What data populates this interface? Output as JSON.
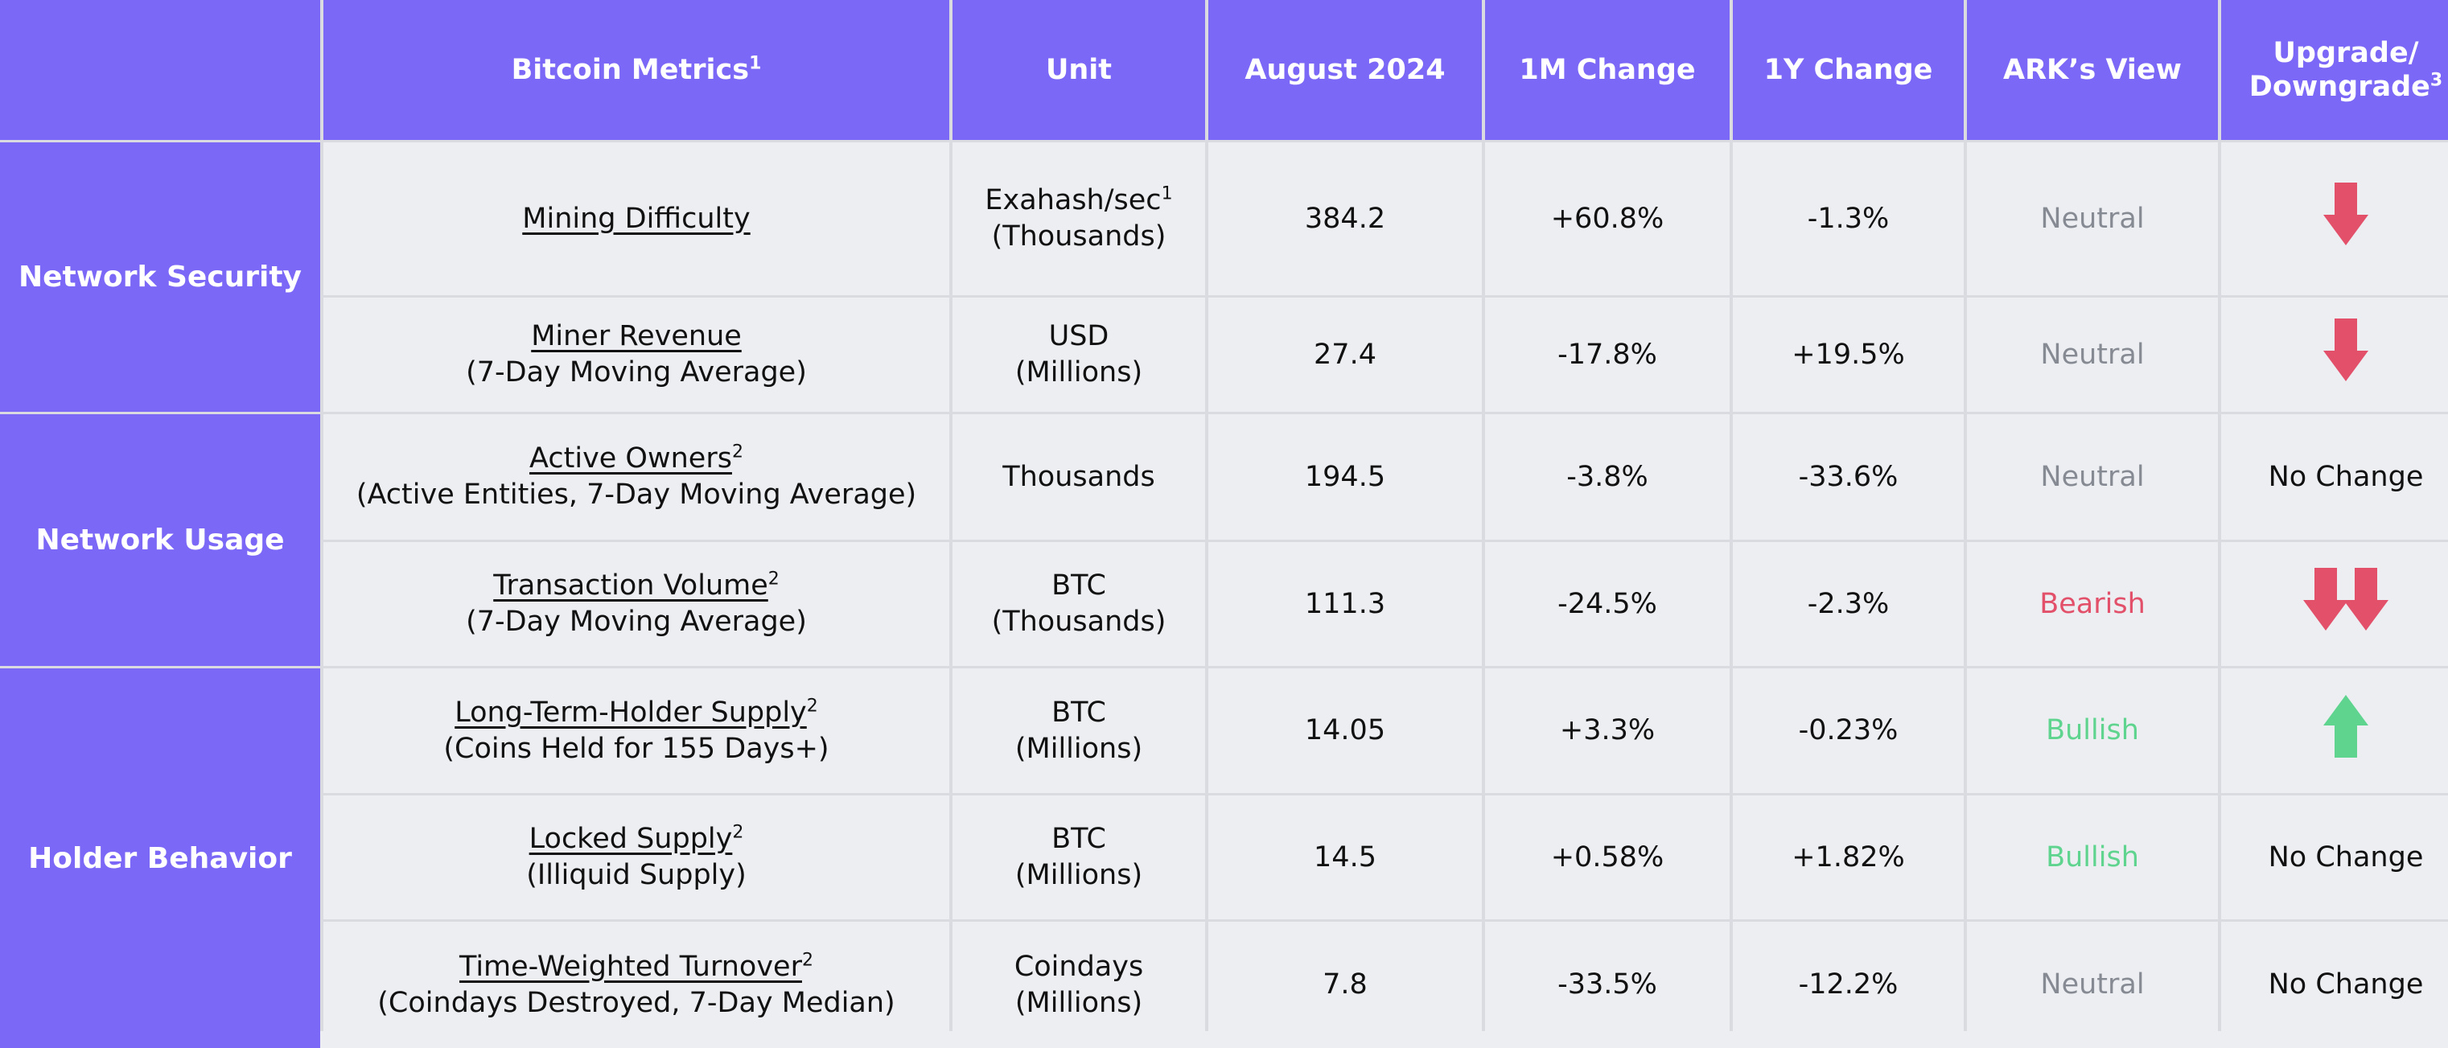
{
  "headers": {
    "metric": "Bitcoin Metrics",
    "metric_sup": "1",
    "unit": "Unit",
    "date": "August 2024",
    "m1": "1M Change",
    "y1": "1Y Change",
    "view": "ARK’s View",
    "upgrade": "Upgrade/",
    "downgrade": "Downgrade",
    "ud_sup": "3"
  },
  "categories": {
    "security": "Network Security",
    "usage": "Network Usage",
    "holder": "Holder Behavior"
  },
  "rows": [
    {
      "name": "Mining Difficulty",
      "sup": "",
      "sub": "",
      "unit1": "Exahash/sec",
      "unit_sup": "1",
      "unit2": "(Thousands)",
      "value": "384.2",
      "m1": "+60.8%",
      "y1": "-1.3%",
      "view": "Neutral",
      "change": "down",
      "change_text": ""
    },
    {
      "name": "Miner Revenue",
      "sup": "",
      "sub": "(7-Day Moving Average)",
      "unit1": "USD",
      "unit_sup": "",
      "unit2": "(Millions)",
      "value": "27.4",
      "m1": "-17.8%",
      "y1": "+19.5%",
      "view": "Neutral",
      "change": "down",
      "change_text": ""
    },
    {
      "name": "Active Owners",
      "sup": "2",
      "sub": "(Active Entities, 7-Day Moving Average)",
      "unit1": "Thousands",
      "unit_sup": "",
      "unit2": "",
      "value": "194.5",
      "m1": "-3.8%",
      "y1": "-33.6%",
      "view": "Neutral",
      "change": "none",
      "change_text": "No Change"
    },
    {
      "name": "Transaction Volume",
      "sup": "2",
      "sub": "(7-Day Moving Average)",
      "unit1": "BTC",
      "unit_sup": "",
      "unit2": "(Thousands)",
      "value": "111.3",
      "m1": "-24.5%",
      "y1": "-2.3%",
      "view": "Bearish",
      "change": "double-down",
      "change_text": ""
    },
    {
      "name": "Long-Term-Holder Supply",
      "sup": "2",
      "sub": "(Coins Held for 155 Days+)",
      "unit1": "BTC",
      "unit_sup": "",
      "unit2": "(Millions)",
      "value": "14.05",
      "m1": "+3.3%",
      "y1": "-0.23%",
      "view": "Bullish",
      "change": "up",
      "change_text": ""
    },
    {
      "name": "Locked Supply",
      "sup": "2",
      "sub": "(Illiquid Supply)",
      "unit1": "BTC",
      "unit_sup": "",
      "unit2": "(Millions)",
      "value": "14.5",
      "m1": "+0.58%",
      "y1": "+1.82%",
      "view": "Bullish",
      "change": "none",
      "change_text": "No Change"
    },
    {
      "name": "Time-Weighted Turnover",
      "sup": "2",
      "sub": "(Coindays Destroyed, 7-Day Median)",
      "unit1": "Coindays",
      "unit_sup": "",
      "unit2": "(Millions)",
      "value": "7.8",
      "m1": "-33.5%",
      "y1": "-12.2%",
      "view": "Neutral",
      "change": "none",
      "change_text": "No Change"
    }
  ],
  "colors": {
    "header_bg": "#7b68f6",
    "bearish": "#e2506a",
    "bullish": "#5fd48f",
    "neutral": "#868a93"
  },
  "icons": {
    "down": "arrow-down-icon",
    "up": "arrow-up-icon",
    "double-down": "double-arrow-down-icon"
  }
}
